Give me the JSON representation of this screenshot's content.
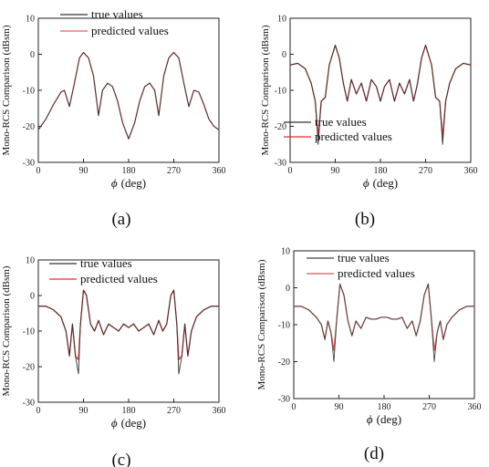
{
  "chart_data": [
    {
      "type": "line",
      "caption": "(a)",
      "ylabel": "Mono-RCS Comparison (dBsm)",
      "xlabel_symbol": "ϕ",
      "xlabel_unit": "(deg)",
      "xlim": [
        0,
        360
      ],
      "ylim": [
        -30,
        10
      ],
      "xticks": [
        0,
        90,
        180,
        270,
        360
      ],
      "yticks": [
        10,
        0,
        -10,
        -20,
        -30
      ],
      "legend": "top-right",
      "colors": {
        "true": "#333333",
        "predicted": "#e06060"
      },
      "series": [
        {
          "name": "true values",
          "x": [
            0,
            15,
            30,
            45,
            52,
            62,
            72,
            82,
            90,
            100,
            110,
            120,
            128,
            138,
            148,
            158,
            168,
            180,
            192,
            202,
            212,
            222,
            232,
            240,
            250,
            260,
            270,
            280,
            290,
            300,
            310,
            320,
            330,
            340,
            350,
            360
          ],
          "y": [
            -21,
            -18,
            -14,
            -10.5,
            -10,
            -14.5,
            -8,
            -1,
            0.5,
            -1,
            -6,
            -17,
            -10,
            -8,
            -9,
            -13,
            -19,
            -23.5,
            -19,
            -13,
            -9,
            -8,
            -10,
            -17,
            -6,
            -1,
            0.5,
            -1,
            -8,
            -14.5,
            -10,
            -10.5,
            -14,
            -18,
            -20,
            -21
          ]
        },
        {
          "name": "predicted values",
          "x": [
            0,
            15,
            30,
            45,
            52,
            62,
            72,
            82,
            90,
            100,
            110,
            120,
            128,
            138,
            148,
            158,
            168,
            180,
            192,
            202,
            212,
            222,
            232,
            240,
            250,
            260,
            270,
            280,
            290,
            300,
            310,
            320,
            330,
            340,
            350,
            360
          ],
          "y": [
            -21,
            -18,
            -14,
            -10.5,
            -10,
            -14.5,
            -8,
            -1,
            0.5,
            -1,
            -6,
            -17,
            -10,
            -8,
            -9,
            -13,
            -19,
            -23.5,
            -19,
            -13,
            -9,
            -8,
            -10,
            -17,
            -6,
            -1,
            0.5,
            -1,
            -8,
            -14.5,
            -10,
            -10.5,
            -14,
            -18,
            -20,
            -21
          ]
        }
      ]
    },
    {
      "type": "line",
      "caption": "(b)",
      "ylabel": "Mono-RCS Comparison (dBsm)",
      "xlabel_symbol": "ϕ",
      "xlabel_unit": "(deg)",
      "xlim": [
        0,
        360
      ],
      "ylim": [
        -30,
        10
      ],
      "xticks": [
        0,
        90,
        180,
        270,
        360
      ],
      "yticks": [
        10,
        0,
        -10,
        -20,
        -30
      ],
      "legend": "bottom-center",
      "colors": {
        "true": "#333333",
        "predicted": "#e03030"
      },
      "series": [
        {
          "name": "true values",
          "x": [
            0,
            15,
            30,
            42,
            50,
            56,
            62,
            70,
            78,
            90,
            98,
            106,
            114,
            122,
            132,
            142,
            152,
            162,
            172,
            180,
            188,
            198,
            208,
            218,
            228,
            238,
            246,
            254,
            262,
            270,
            282,
            290,
            298,
            304,
            310,
            318,
            330,
            345,
            360
          ],
          "y": [
            -3,
            -2.5,
            -4,
            -8,
            -13,
            -25,
            -13,
            -12,
            -3,
            2.5,
            -1,
            -8,
            -13,
            -7,
            -11,
            -8,
            -13,
            -7,
            -9,
            -13,
            -9,
            -7,
            -13,
            -8,
            -11,
            -7,
            -13,
            -8,
            -1,
            2.5,
            -3,
            -12,
            -13,
            -25,
            -13,
            -8,
            -4,
            -2.5,
            -3
          ]
        },
        {
          "name": "predicted values",
          "x": [
            0,
            15,
            30,
            42,
            50,
            56,
            62,
            70,
            78,
            90,
            98,
            106,
            114,
            122,
            132,
            142,
            152,
            162,
            172,
            180,
            188,
            198,
            208,
            218,
            228,
            238,
            246,
            254,
            262,
            270,
            282,
            290,
            298,
            304,
            310,
            318,
            330,
            345,
            360
          ],
          "y": [
            -3,
            -2.5,
            -4,
            -8,
            -13,
            -23,
            -13,
            -12,
            -3,
            2.5,
            -1,
            -8,
            -13,
            -7,
            -11,
            -8,
            -13,
            -7,
            -9,
            -13,
            -9,
            -7,
            -13,
            -8,
            -11,
            -7,
            -13,
            -8,
            -1,
            2.5,
            -3,
            -12,
            -13,
            -23,
            -13,
            -8,
            -4,
            -2.5,
            -3
          ]
        }
      ]
    },
    {
      "type": "line",
      "caption": "(c)",
      "ylabel": "Mono-RCS Comparison (dBsm)",
      "xlabel_symbol": "ϕ",
      "xlabel_unit": "(deg)",
      "xlim": [
        0,
        360
      ],
      "ylim": [
        -30,
        10
      ],
      "xticks": [
        0,
        90,
        180,
        270,
        360
      ],
      "yticks": [
        10,
        0,
        -10,
        -20,
        -30
      ],
      "legend": "top-center",
      "colors": {
        "true": "#333333",
        "predicted": "#e03030"
      },
      "series": [
        {
          "name": "true values",
          "x": [
            0,
            15,
            30,
            45,
            55,
            62,
            68,
            74,
            80,
            84,
            90,
            96,
            104,
            112,
            120,
            130,
            140,
            150,
            160,
            170,
            180,
            190,
            200,
            210,
            220,
            230,
            240,
            248,
            256,
            264,
            270,
            276,
            280,
            286,
            292,
            298,
            305,
            315,
            330,
            345,
            360
          ],
          "y": [
            -3,
            -3,
            -4,
            -6,
            -10,
            -17,
            -8,
            -17,
            -22,
            -8,
            1.5,
            0,
            -8,
            -10,
            -7,
            -11,
            -8,
            -9,
            -10,
            -8,
            -9,
            -8,
            -10,
            -9,
            -8,
            -11,
            -7,
            -10,
            -8,
            0,
            1.5,
            -8,
            -22,
            -17,
            -8,
            -17,
            -10,
            -6,
            -4,
            -3,
            -3
          ]
        },
        {
          "name": "predicted values",
          "x": [
            0,
            15,
            30,
            45,
            55,
            62,
            68,
            74,
            80,
            84,
            90,
            96,
            104,
            112,
            120,
            130,
            140,
            150,
            160,
            170,
            180,
            190,
            200,
            210,
            220,
            230,
            240,
            248,
            256,
            264,
            270,
            276,
            280,
            286,
            292,
            298,
            305,
            315,
            330,
            345,
            360
          ],
          "y": [
            -3,
            -3,
            -4,
            -6,
            -10,
            -17,
            -8,
            -17,
            -18,
            -8,
            1.5,
            0,
            -8,
            -10,
            -7,
            -11,
            -8,
            -9,
            -10,
            -8,
            -9,
            -8,
            -10,
            -9,
            -8,
            -11,
            -7,
            -10,
            -8,
            0,
            1.5,
            -8,
            -18,
            -17,
            -8,
            -17,
            -10,
            -6,
            -4,
            -3,
            -3
          ]
        }
      ]
    },
    {
      "type": "line",
      "caption": "(d)",
      "ylabel": "Mono-RCS Comparison (dBsm)",
      "xlabel_symbol": "ϕ",
      "xlabel_unit": "(deg)",
      "xlim": [
        0,
        360
      ],
      "ylim": [
        -30,
        10
      ],
      "xticks": [
        0,
        90,
        180,
        270,
        360
      ],
      "yticks": [
        10,
        0,
        -10,
        -20,
        -30
      ],
      "legend": "top-center",
      "colors": {
        "true": "#444444",
        "predicted": "#e05050"
      },
      "series": [
        {
          "name": "true values",
          "x": [
            0,
            15,
            30,
            45,
            55,
            62,
            68,
            74,
            80,
            86,
            92,
            100,
            108,
            116,
            124,
            134,
            144,
            154,
            164,
            174,
            180,
            186,
            196,
            206,
            216,
            226,
            236,
            244,
            252,
            260,
            268,
            274,
            280,
            286,
            292,
            298,
            305,
            315,
            330,
            345,
            360
          ],
          "y": [
            -5,
            -5,
            -6,
            -8,
            -10,
            -14,
            -9,
            -12,
            -20,
            -8,
            1,
            -2,
            -9,
            -13,
            -9,
            -11,
            -8,
            -8.5,
            -8.5,
            -8,
            -8,
            -8,
            -8.5,
            -8.5,
            -8,
            -11,
            -9,
            -13,
            -9,
            -2,
            1,
            -8,
            -20,
            -12,
            -9,
            -14,
            -10,
            -8,
            -6,
            -5,
            -5
          ]
        },
        {
          "name": "predicted values",
          "x": [
            0,
            15,
            30,
            45,
            55,
            62,
            68,
            74,
            80,
            86,
            92,
            100,
            108,
            116,
            124,
            134,
            144,
            154,
            164,
            174,
            180,
            186,
            196,
            206,
            216,
            226,
            236,
            244,
            252,
            260,
            268,
            274,
            280,
            286,
            292,
            298,
            305,
            315,
            330,
            345,
            360
          ],
          "y": [
            -5,
            -5,
            -6,
            -8,
            -10,
            -14,
            -9,
            -12,
            -17,
            -8,
            1,
            -2,
            -9,
            -13,
            -9,
            -11,
            -8,
            -8.5,
            -8.5,
            -8,
            -8,
            -8,
            -8.5,
            -8.5,
            -8,
            -11,
            -9,
            -13,
            -9,
            -2,
            1,
            -8,
            -17,
            -12,
            -9,
            -14,
            -10,
            -8,
            -6,
            -5,
            -5
          ]
        }
      ]
    }
  ]
}
